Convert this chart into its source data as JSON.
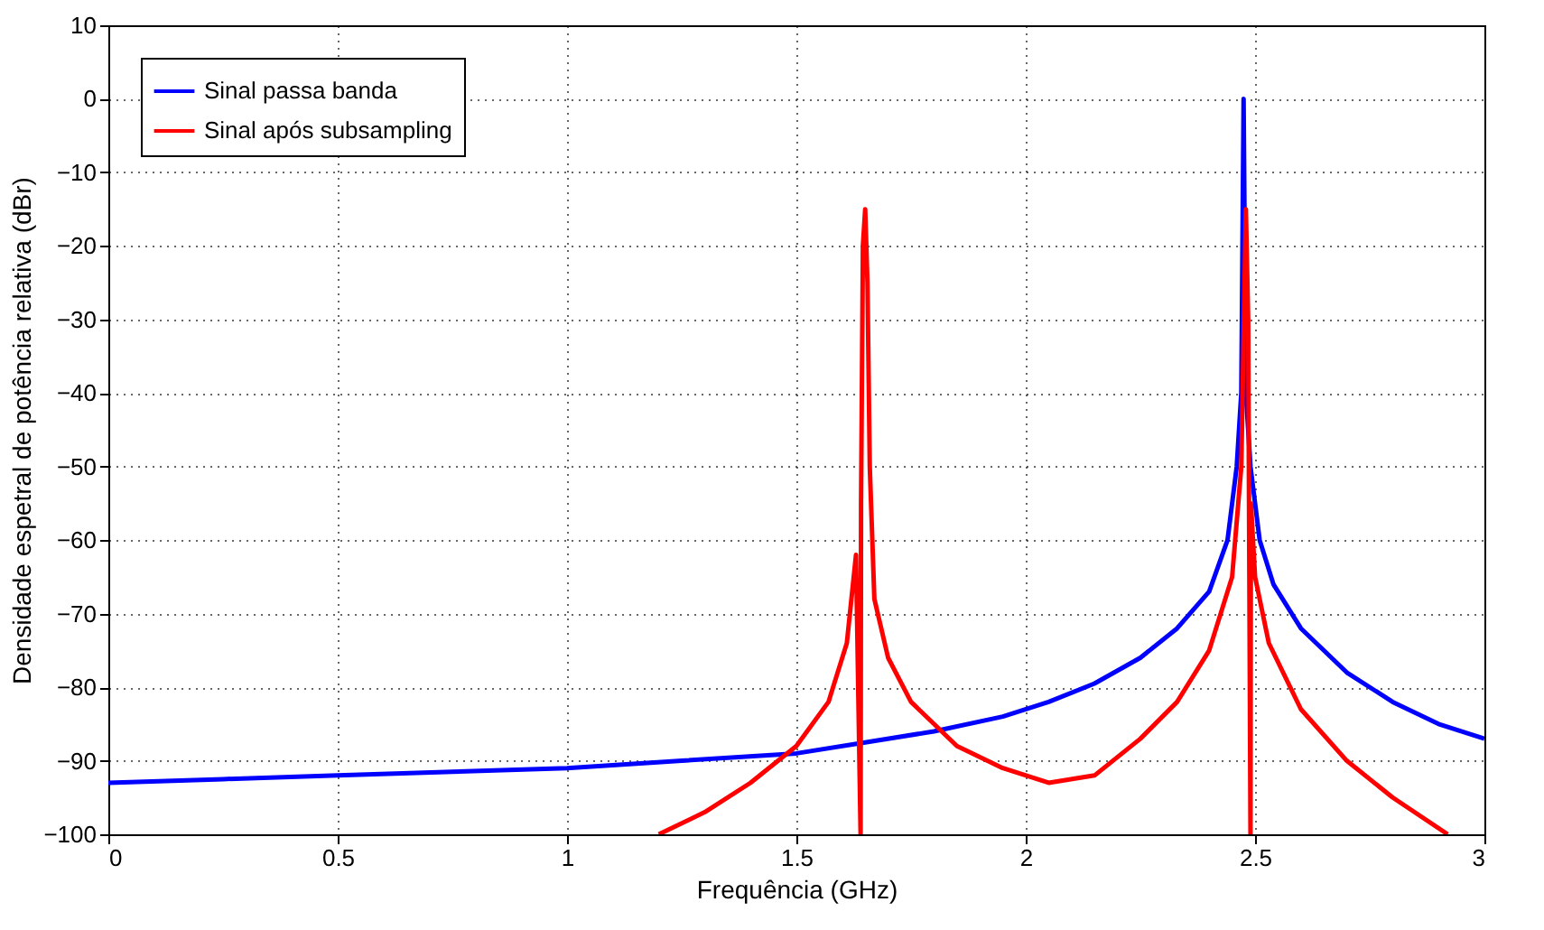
{
  "chart_data": {
    "type": "line",
    "xlabel": "Frequência (GHz)",
    "ylabel": "Densidade espetral de potência relativa (dBr)",
    "xlim": [
      0,
      3
    ],
    "ylim": [
      -100,
      10
    ],
    "xticks": [
      0,
      0.5,
      1,
      1.5,
      2,
      2.5,
      3
    ],
    "yticks": [
      -100,
      -90,
      -80,
      -70,
      -60,
      -50,
      -40,
      -30,
      -20,
      -10,
      0,
      10
    ],
    "grid": true,
    "legend": "top left",
    "marker": "none",
    "line_style": "solid",
    "series": [
      {
        "name": "Sinal passa banda",
        "color": "#0000ff",
        "x": [
          0,
          0.25,
          0.5,
          0.75,
          1,
          1.25,
          1.5,
          1.65,
          1.8,
          1.95,
          2.05,
          2.15,
          2.25,
          2.33,
          2.4,
          2.44,
          2.46,
          2.47,
          2.475,
          2.48,
          2.49,
          2.51,
          2.54,
          2.6,
          2.7,
          2.8,
          2.9,
          3
        ],
        "values": [
          -93,
          -92.5,
          -92,
          -91.5,
          -91,
          -90,
          -89,
          -87.5,
          -86,
          -84,
          -82,
          -79.5,
          -76,
          -72,
          -67,
          -60,
          -50,
          -40,
          0,
          -40,
          -50,
          -60,
          -66,
          -72,
          -78,
          -82,
          -85,
          -87
        ]
      },
      {
        "name": "Sinal após subsampling",
        "color": "#ff0000",
        "x": [
          1.2,
          1.3,
          1.4,
          1.5,
          1.57,
          1.61,
          1.63,
          1.64,
          1.641,
          1.645,
          1.65,
          1.655,
          1.66,
          1.67,
          1.7,
          1.75,
          1.85,
          1.95,
          2.05,
          2.15,
          2.25,
          2.33,
          2.4,
          2.45,
          2.47,
          2.48,
          2.485,
          2.49,
          2.491,
          2.5,
          2.53,
          2.6,
          2.7,
          2.8,
          2.92
        ],
        "values": [
          -100,
          -97,
          -93,
          -88,
          -82,
          -74,
          -62,
          -100,
          -55,
          -20,
          -15,
          -25,
          -50,
          -68,
          -76,
          -82,
          -88,
          -91,
          -93,
          -92,
          -87,
          -82,
          -75,
          -65,
          -50,
          -15,
          -30,
          -100,
          -55,
          -65,
          -74,
          -83,
          -90,
          -95,
          -100
        ]
      }
    ]
  }
}
